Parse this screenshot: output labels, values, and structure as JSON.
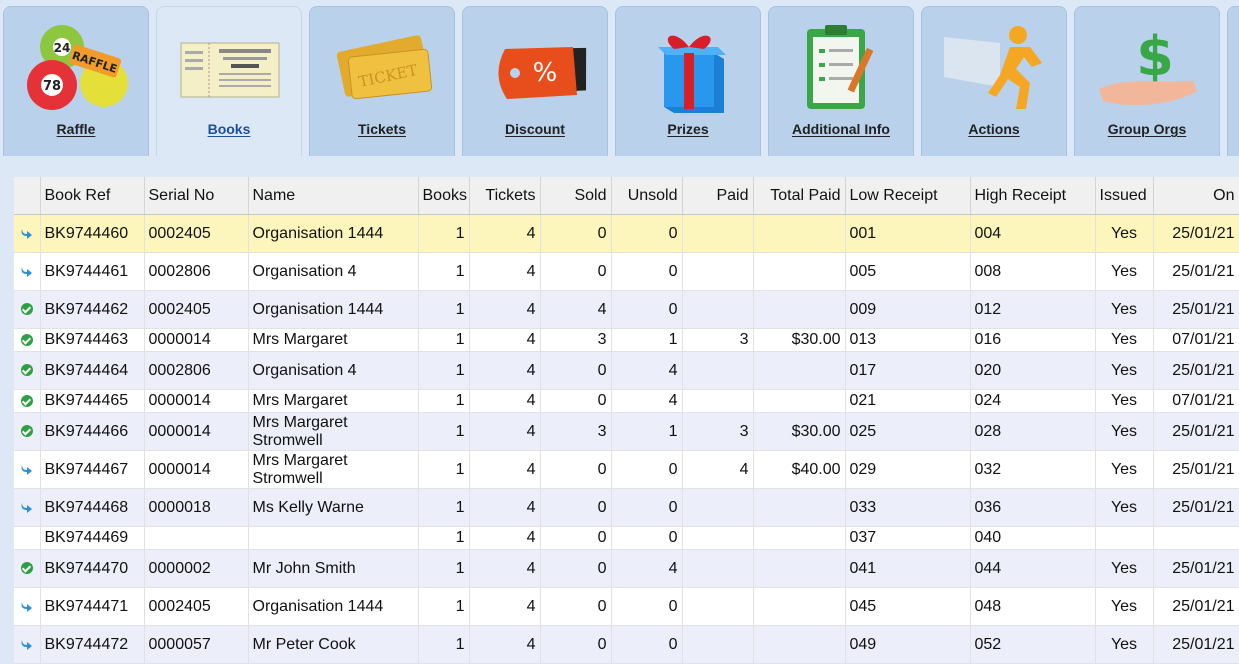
{
  "tabs": [
    {
      "label": "Raffle",
      "icon": "raffle-balls-icon",
      "active": false
    },
    {
      "label": "Books",
      "icon": "book-icon",
      "active": true
    },
    {
      "label": "Tickets",
      "icon": "ticket-icon",
      "active": false
    },
    {
      "label": "Discount",
      "icon": "discount-icon",
      "active": false
    },
    {
      "label": "Prizes",
      "icon": "gift-icon",
      "active": false
    },
    {
      "label": "Additional Info",
      "icon": "clipboard-icon",
      "active": false
    },
    {
      "label": "Actions",
      "icon": "running-man-icon",
      "active": false
    },
    {
      "label": "Group Orgs",
      "icon": "money-hand-icon",
      "active": false
    }
  ],
  "columns": [
    "Book Ref",
    "Serial No",
    "Name",
    "Books",
    "Tickets",
    "Sold",
    "Unsold",
    "Paid",
    "Total Paid",
    "Low Receipt",
    "High Receipt",
    "Issued",
    "On"
  ],
  "rows": [
    {
      "status": "arrow",
      "book_ref": "BK9744460",
      "serial": "0002405",
      "name": "Organisation 1444",
      "books": "1",
      "tickets": "4",
      "sold": "0",
      "unsold": "0",
      "paid": "",
      "total_paid": "",
      "low": "001",
      "high": "004",
      "issued": "Yes",
      "on": "25/01/21"
    },
    {
      "status": "arrow",
      "book_ref": "BK9744461",
      "serial": "0002806",
      "name": "Organisation 4",
      "books": "1",
      "tickets": "4",
      "sold": "0",
      "unsold": "0",
      "paid": "",
      "total_paid": "",
      "low": "005",
      "high": "008",
      "issued": "Yes",
      "on": "25/01/21"
    },
    {
      "status": "check",
      "book_ref": "BK9744462",
      "serial": "0002405",
      "name": "Organisation 1444",
      "books": "1",
      "tickets": "4",
      "sold": "4",
      "unsold": "0",
      "paid": "",
      "total_paid": "",
      "low": "009",
      "high": "012",
      "issued": "Yes",
      "on": "25/01/21"
    },
    {
      "status": "check",
      "book_ref": "BK9744463",
      "serial": "0000014",
      "name": "Mrs Margaret",
      "books": "1",
      "tickets": "4",
      "sold": "3",
      "unsold": "1",
      "paid": "3",
      "total_paid": "$30.00",
      "low": "013",
      "high": "016",
      "issued": "Yes",
      "on": "07/01/21"
    },
    {
      "status": "check",
      "book_ref": "BK9744464",
      "serial": "0002806",
      "name": "Organisation 4",
      "books": "1",
      "tickets": "4",
      "sold": "0",
      "unsold": "4",
      "paid": "",
      "total_paid": "",
      "low": "017",
      "high": "020",
      "issued": "Yes",
      "on": "25/01/21"
    },
    {
      "status": "check",
      "book_ref": "BK9744465",
      "serial": "0000014",
      "name": "Mrs Margaret",
      "books": "1",
      "tickets": "4",
      "sold": "0",
      "unsold": "4",
      "paid": "",
      "total_paid": "",
      "low": "021",
      "high": "024",
      "issued": "Yes",
      "on": "07/01/21"
    },
    {
      "status": "check",
      "book_ref": "BK9744466",
      "serial": "0000014",
      "name": "Mrs Margaret Stromwell",
      "books": "1",
      "tickets": "4",
      "sold": "3",
      "unsold": "1",
      "paid": "3",
      "total_paid": "$30.00",
      "low": "025",
      "high": "028",
      "issued": "Yes",
      "on": "25/01/21"
    },
    {
      "status": "arrow",
      "book_ref": "BK9744467",
      "serial": "0000014",
      "name": "Mrs Margaret Stromwell",
      "books": "1",
      "tickets": "4",
      "sold": "0",
      "unsold": "0",
      "paid": "4",
      "total_paid": "$40.00",
      "low": "029",
      "high": "032",
      "issued": "Yes",
      "on": "25/01/21"
    },
    {
      "status": "arrow",
      "book_ref": "BK9744468",
      "serial": "0000018",
      "name": "Ms Kelly Warne",
      "books": "1",
      "tickets": "4",
      "sold": "0",
      "unsold": "0",
      "paid": "",
      "total_paid": "",
      "low": "033",
      "high": "036",
      "issued": "Yes",
      "on": "25/01/21"
    },
    {
      "status": "",
      "book_ref": "BK9744469",
      "serial": "",
      "name": "",
      "books": "1",
      "tickets": "4",
      "sold": "0",
      "unsold": "0",
      "paid": "",
      "total_paid": "",
      "low": "037",
      "high": "040",
      "issued": "",
      "on": ""
    },
    {
      "status": "check",
      "book_ref": "BK9744470",
      "serial": "0000002",
      "name": "Mr John Smith",
      "books": "1",
      "tickets": "4",
      "sold": "0",
      "unsold": "4",
      "paid": "",
      "total_paid": "",
      "low": "041",
      "high": "044",
      "issued": "Yes",
      "on": "25/01/21"
    },
    {
      "status": "arrow",
      "book_ref": "BK9744471",
      "serial": "0002405",
      "name": "Organisation 1444",
      "books": "1",
      "tickets": "4",
      "sold": "0",
      "unsold": "0",
      "paid": "",
      "total_paid": "",
      "low": "045",
      "high": "048",
      "issued": "Yes",
      "on": "25/01/21"
    },
    {
      "status": "arrow",
      "book_ref": "BK9744472",
      "serial": "0000057",
      "name": "Mr Peter Cook",
      "books": "1",
      "tickets": "4",
      "sold": "0",
      "unsold": "0",
      "paid": "",
      "total_paid": "",
      "low": "049",
      "high": "052",
      "issued": "Yes",
      "on": "25/01/21"
    }
  ],
  "colors": {
    "selected_row": "#fcf6bc",
    "alt_row": "#eceef9",
    "tab_bg": "#b9d1ea",
    "active_tab": "#dce8f5"
  }
}
